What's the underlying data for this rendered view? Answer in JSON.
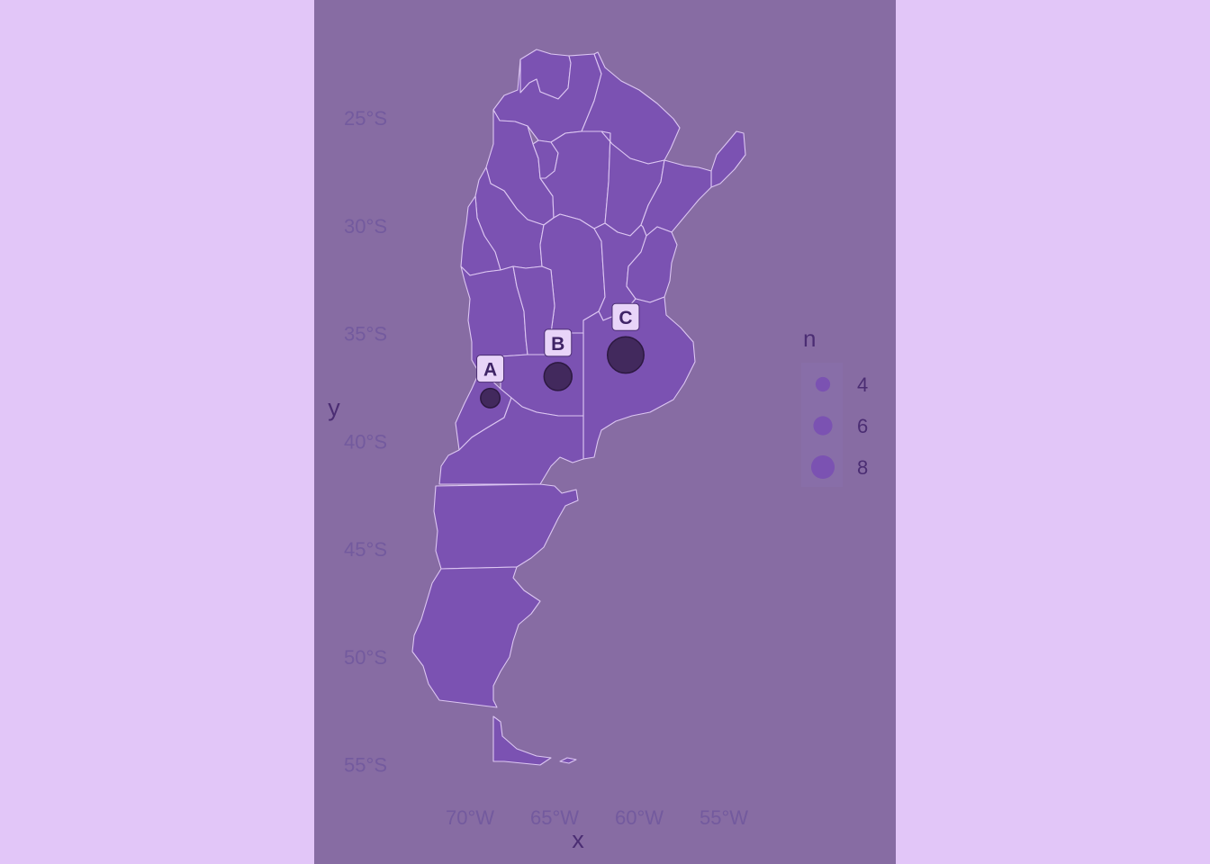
{
  "colors": {
    "page_background": "#e2c6f8",
    "panel_background": "#876ca3",
    "land": "#7b52b2",
    "province_border": "#dcc6f2",
    "marker_fill": "#3d2656",
    "label_fill": "#e8d4f8",
    "tick_text": "#735a9e",
    "title_text": "#4b2d73"
  },
  "chart_data": {
    "type": "map",
    "region": "Argentina",
    "xlabel": "x",
    "ylabel": "y",
    "x_ticks": [
      {
        "value": -70,
        "label": "70°W"
      },
      {
        "value": -65,
        "label": "65°W"
      },
      {
        "value": -60,
        "label": "60°W"
      },
      {
        "value": -55,
        "label": "55°W"
      }
    ],
    "y_ticks": [
      {
        "value": -25,
        "label": "25°S"
      },
      {
        "value": -30,
        "label": "30°S"
      },
      {
        "value": -35,
        "label": "35°S"
      },
      {
        "value": -40,
        "label": "40°S"
      },
      {
        "value": -45,
        "label": "45°S"
      },
      {
        "value": -50,
        "label": "50°S"
      },
      {
        "value": -55,
        "label": "55°S"
      }
    ],
    "points": [
      {
        "label": "A",
        "lon": -68.8,
        "lat": -38.0,
        "n": 3
      },
      {
        "label": "B",
        "lon": -64.8,
        "lat": -37.0,
        "n": 6
      },
      {
        "label": "C",
        "lon": -60.8,
        "lat": -36.0,
        "n": 9
      }
    ],
    "legend": {
      "title": "n",
      "placement": "right",
      "entries": [
        {
          "value": 4,
          "label": "4"
        },
        {
          "value": 6,
          "label": "6"
        },
        {
          "value": 8,
          "label": "8"
        }
      ]
    },
    "grid": false
  }
}
